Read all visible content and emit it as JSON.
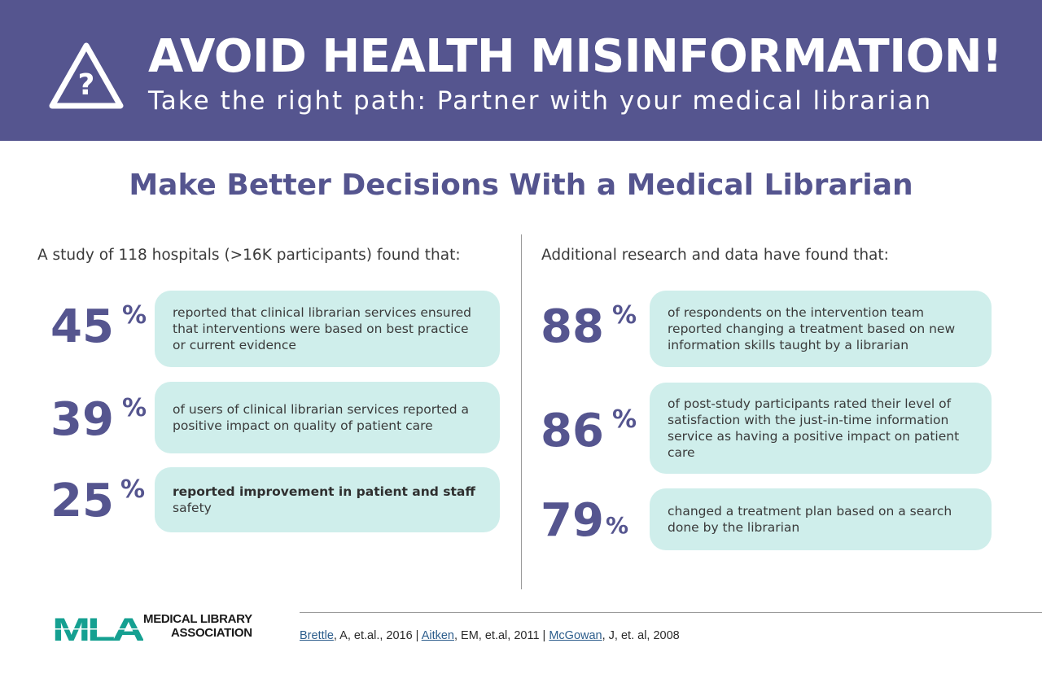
{
  "banner": {
    "title": "AVOID HEALTH MISINFORMATION!",
    "subtitle": "Take the right path: Partner with your medical librarian",
    "icon": "warning-question-icon"
  },
  "headline": "Make Better Decisions With a Medical Librarian",
  "left": {
    "intro": "A study of 118 hospitals (>16K participants) found that:",
    "stats": [
      {
        "value": "45",
        "unit": "%",
        "text": "reported that clinical librarian services ensured that interventions were based on best practice or current evidence"
      },
      {
        "value": "39",
        "unit": "%",
        "text": "of users of clinical librarian services reported a positive impact on quality of patient care"
      },
      {
        "value": "25",
        "unit": "%",
        "text_bold": "reported improvement in patient and staff",
        "text": "safety"
      }
    ]
  },
  "right": {
    "intro": "Additional research and data have found that:",
    "stats": [
      {
        "value": "88",
        "unit": "%",
        "text": "of respondents on the intervention team reported changing a treatment based on new information skills taught by a librarian"
      },
      {
        "value": "86",
        "unit": "%",
        "text": "of post-study participants rated their level of satisfaction with the just-in-time information service as having a positive impact on patient care"
      },
      {
        "value": "79",
        "unit": "%",
        "text": "changed a treatment plan based on a search done by the librarian"
      }
    ]
  },
  "footer": {
    "logo_letters": "MLA",
    "org_line1": "MEDICAL LIBRARY",
    "org_line2": "ASSOCIATION",
    "citations": [
      {
        "link": "Brettle",
        "rest": ", A, et.al., 2016 | "
      },
      {
        "link": "Aitken",
        "rest": ", EM, et.al, 2011 | "
      },
      {
        "link": "McGowan",
        "rest": ", J,  et. al, 2008"
      }
    ]
  },
  "colors": {
    "brand_purple": "#55558f",
    "box_teal": "#cfeeeb",
    "logo_teal": "#15a091"
  }
}
